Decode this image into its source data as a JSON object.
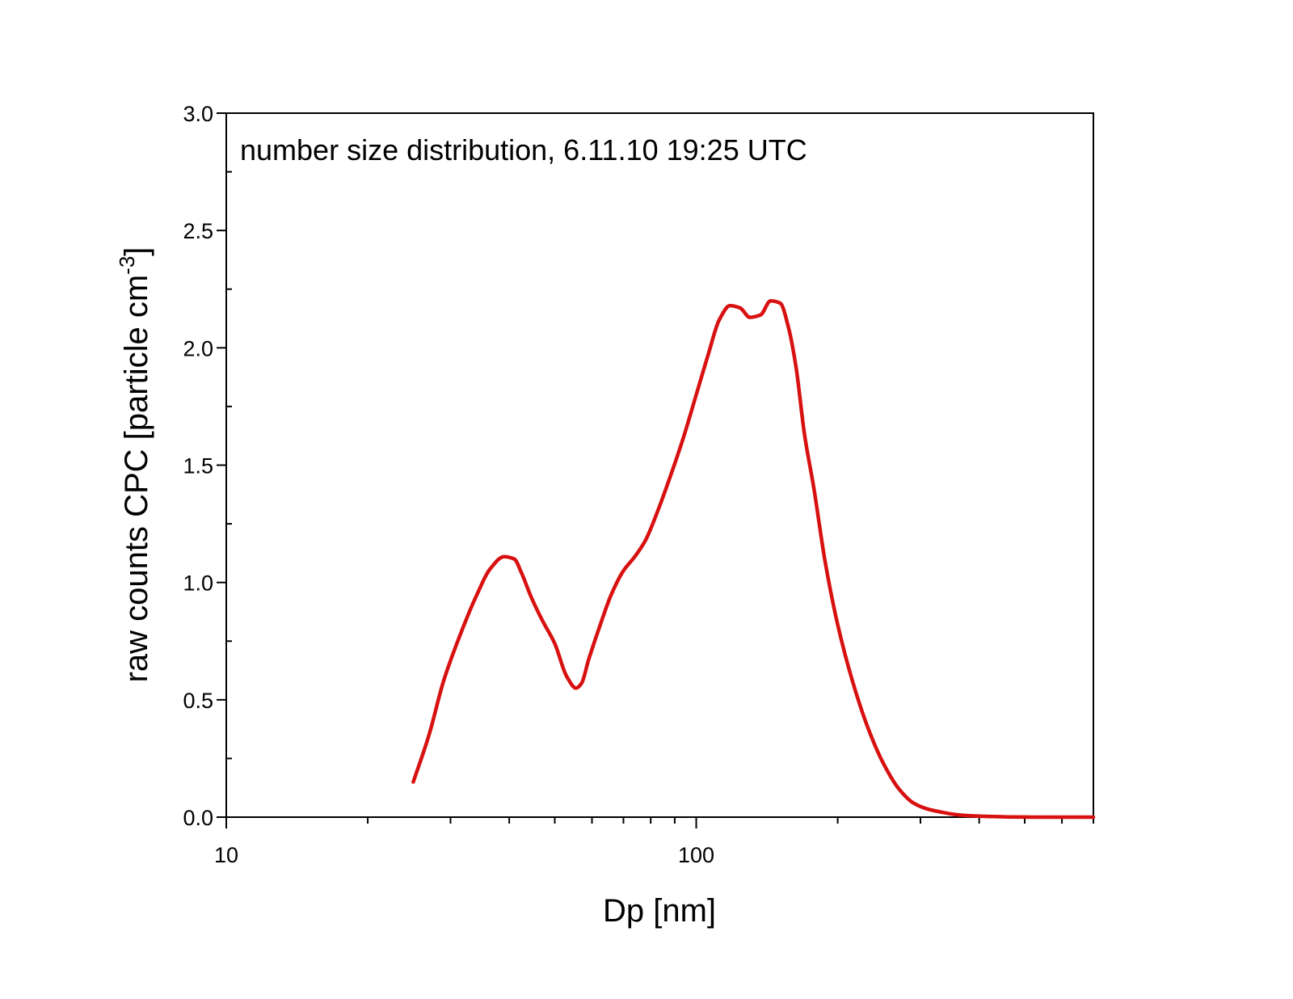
{
  "chart_data": {
    "type": "line",
    "annotation": "number size distribution, 6.11.10 19:25 UTC",
    "xlabel": "Dp [nm]",
    "ylabel_main": "raw counts CPC [particle cm",
    "ylabel_sup": "-3",
    "ylabel_end": "]",
    "x_scale": "log",
    "xlim": [
      10,
      700
    ],
    "ylim": [
      0,
      3.0
    ],
    "x_ticks": [
      10,
      100
    ],
    "x_tick_labels": [
      "10",
      "100"
    ],
    "y_ticks": [
      0,
      0.5,
      1.0,
      1.5,
      2.0,
      2.5,
      3.0
    ],
    "y_tick_labels": [
      "0.0",
      "0.5",
      "1.0",
      "1.5",
      "2.0",
      "2.5",
      "3.0"
    ],
    "grid": false,
    "series": [
      {
        "color": "#d81010",
        "x": [
          25.0,
          27.0,
          29.0,
          31.5,
          34.0,
          36.5,
          39.0,
          41.0,
          42.5,
          44.5,
          47.0,
          50.0,
          53.0,
          55.5,
          57.0,
          59.0,
          62.0,
          66.0,
          70.0,
          74.0,
          78.0,
          83.0,
          88.0,
          94.0,
          100.0,
          106.0,
          112.0,
          118.0,
          124.0,
          130.0,
          137.0,
          144.0,
          151.0,
          157.0,
          163.0,
          170.0,
          178.0,
          188.0,
          200.0,
          215.0,
          232.0,
          250.0,
          270.0,
          290.0,
          310.0,
          335.0,
          360.0,
          390.0,
          420.0,
          460.0,
          520.0,
          600.0,
          700.0
        ],
        "y": [
          0.15,
          0.35,
          0.58,
          0.78,
          0.94,
          1.06,
          1.11,
          1.1,
          1.04,
          0.94,
          0.84,
          0.74,
          0.6,
          0.55,
          0.57,
          0.67,
          0.8,
          0.95,
          1.05,
          1.11,
          1.18,
          1.31,
          1.45,
          1.62,
          1.8,
          1.97,
          2.12,
          2.18,
          2.17,
          2.13,
          2.14,
          2.2,
          2.19,
          2.09,
          1.92,
          1.63,
          1.4,
          1.09,
          0.82,
          0.58,
          0.38,
          0.23,
          0.12,
          0.06,
          0.035,
          0.02,
          0.01,
          0.005,
          0.003,
          0.001,
          0.0,
          0.0,
          0.0
        ]
      }
    ]
  }
}
